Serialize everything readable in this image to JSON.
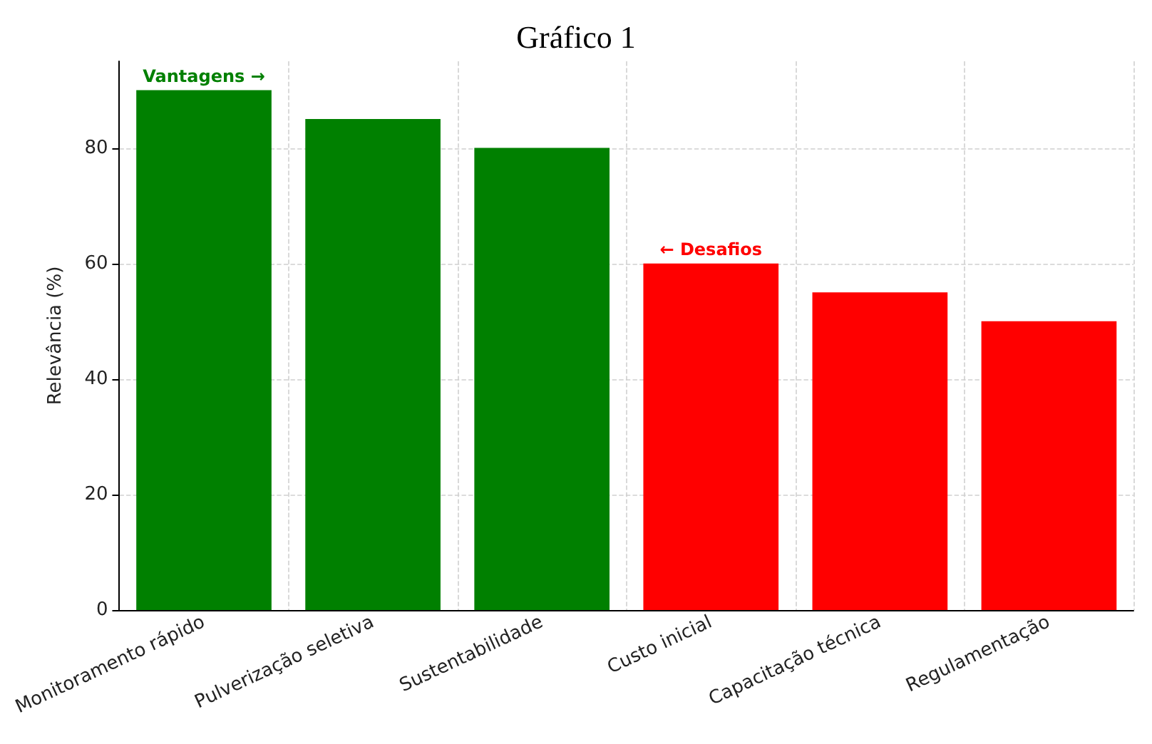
{
  "chart_data": {
    "type": "bar",
    "title": "Gráfico 1",
    "ylabel": "Relevância (%)",
    "categories": [
      "Monitoramento rápido",
      "Pulverização seletiva",
      "Sustentabilidade",
      "Custo inicial",
      "Capacitação técnica",
      "Regulamentação"
    ],
    "values": [
      90,
      85,
      80,
      60,
      55,
      50
    ],
    "colors": [
      "#008000",
      "#008000",
      "#008000",
      "#ff0000",
      "#ff0000",
      "#ff0000"
    ],
    "ylim": [
      0,
      95
    ],
    "yticks": [
      0,
      20,
      40,
      60,
      80
    ],
    "grid": true,
    "annotations": [
      "Vantagens →",
      "← Desafios"
    ]
  }
}
